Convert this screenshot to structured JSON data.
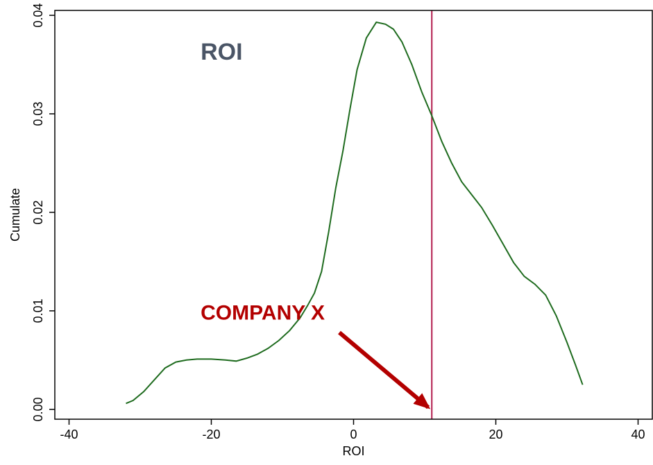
{
  "chart_data": {
    "type": "line",
    "title": "ROI",
    "xlabel": "ROI",
    "ylabel": "Cumulate",
    "xlim": [
      -42,
      42
    ],
    "ylim": [
      -0.001,
      0.0405
    ],
    "x_ticks": [
      -40,
      -20,
      0,
      20,
      40
    ],
    "x_tick_labels": [
      "-40",
      "-20",
      "0",
      "20",
      "40"
    ],
    "y_ticks": [
      0.0,
      0.01,
      0.02,
      0.03,
      0.04
    ],
    "y_tick_labels": [
      "0.00",
      "0.01",
      "0.02",
      "0.03",
      "0.04"
    ],
    "grid": false,
    "series": [
      {
        "color": "#1e6b1e",
        "x": [
          -32,
          -31,
          -29.5,
          -28,
          -26.5,
          -25,
          -23.5,
          -22,
          -20,
          -18,
          -16.5,
          -15,
          -13.5,
          -12,
          -10.5,
          -9,
          -7.5,
          -6.5,
          -5.5,
          -4.5,
          -3.5,
          -2.5,
          -1.5,
          -0.5,
          0.5,
          1.8,
          3.2,
          4.5,
          5.6,
          6.8,
          8.2,
          9.6,
          11,
          12.4,
          13.8,
          15.2,
          16.6,
          18,
          19.5,
          21,
          22.5,
          24,
          25.5,
          27,
          28.5,
          30,
          31.2,
          32.2
        ],
        "y": [
          0.0006,
          0.0009,
          0.0018,
          0.003,
          0.0042,
          0.0048,
          0.005,
          0.0051,
          0.0051,
          0.005,
          0.0049,
          0.0052,
          0.0056,
          0.0062,
          0.007,
          0.008,
          0.0093,
          0.0105,
          0.0118,
          0.014,
          0.018,
          0.0225,
          0.0262,
          0.0305,
          0.0345,
          0.0377,
          0.0393,
          0.0391,
          0.0386,
          0.0373,
          0.035,
          0.0322,
          0.0298,
          0.0272,
          0.025,
          0.0231,
          0.0218,
          0.0205,
          0.0187,
          0.0168,
          0.0149,
          0.0135,
          0.0127,
          0.0116,
          0.0095,
          0.0068,
          0.0045,
          0.0025
        ]
      }
    ],
    "reference_line": {
      "x": 11,
      "color": "#b21b4d"
    },
    "annotation": {
      "text": "COMPANY X",
      "color": "#b30000",
      "arrow_from": [
        -2,
        0.0078
      ],
      "arrow_to": [
        10.5,
        0.0002
      ]
    },
    "title_color": "#4a5566"
  }
}
